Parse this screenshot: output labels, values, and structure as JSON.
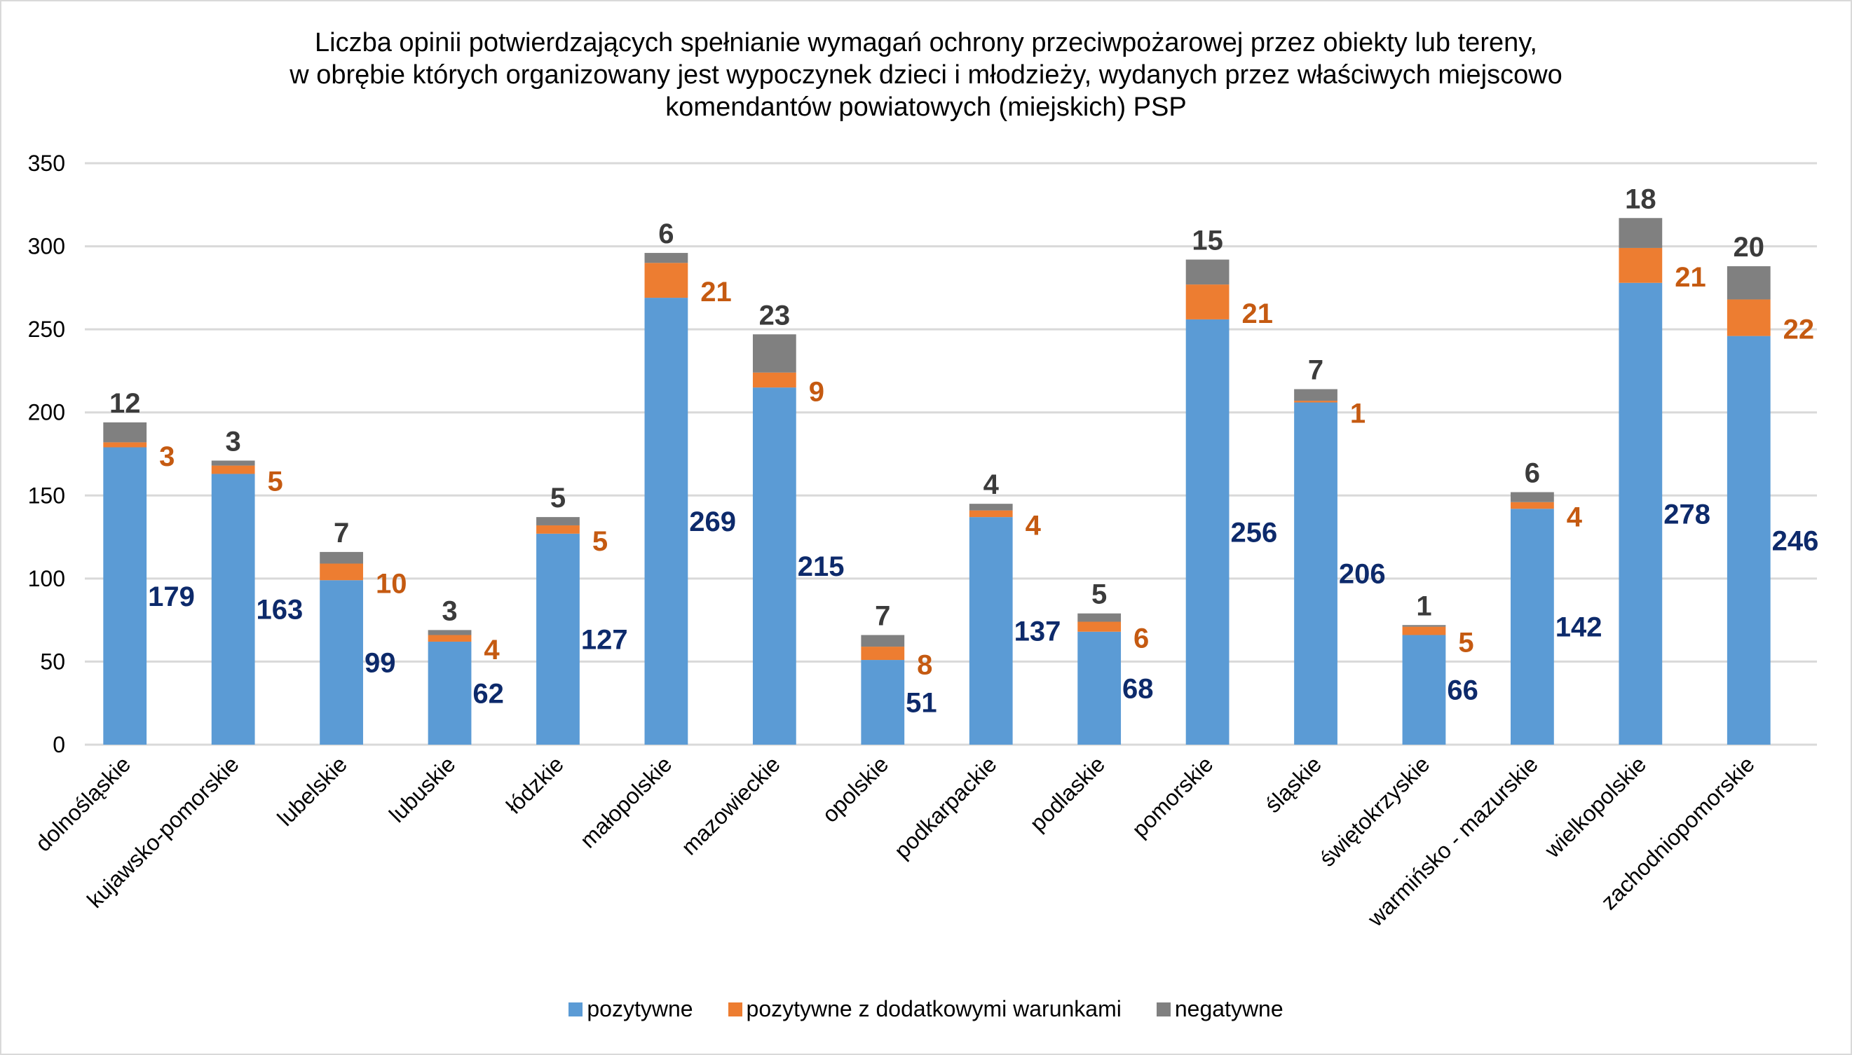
{
  "chart_data": {
    "type": "bar",
    "stacked": true,
    "title": [
      "Liczba opinii potwierdzających spełnianie wymagań ochrony przeciwpożarowej przez obiekty lub tereny,",
      "w obrębie których organizowany jest wypoczynek dzieci i młodzieży, wydanych przez właściwych miejscowo",
      "komendantów powiatowych (miejskich) PSP"
    ],
    "xlabel": "",
    "ylabel": "",
    "ylim": [
      0,
      350
    ],
    "yticks": [
      0,
      50,
      100,
      150,
      200,
      250,
      300,
      350
    ],
    "grid": true,
    "legend_position": "bottom",
    "categories": [
      "dolnośląskie",
      "kujawsko-pomorskie",
      "lubelskie",
      "lubuskie",
      "łódzkie",
      "małopolskie",
      "mazowieckie",
      "opolskie",
      "podkarpackie",
      "podlaskie",
      "pomorskie",
      "śląskie",
      "świętokrzyskie",
      "warmińsko - mazurskie",
      "wielkopolskie",
      "zachodniopomorskie"
    ],
    "series": [
      {
        "name": "pozytywne",
        "color": "#5b9bd5",
        "label_color": "#0d2a6b",
        "values": [
          179,
          163,
          99,
          62,
          127,
          269,
          215,
          51,
          137,
          68,
          256,
          206,
          66,
          142,
          278,
          246
        ]
      },
      {
        "name": "pozytywne z dodatkowymi warunkami",
        "color": "#ed7d31",
        "label_color": "#c55a11",
        "values": [
          3,
          5,
          10,
          4,
          5,
          21,
          9,
          8,
          4,
          6,
          21,
          1,
          5,
          4,
          21,
          22
        ]
      },
      {
        "name": "negatywne",
        "color": "#808080",
        "label_color": "#3b3b3b",
        "values": [
          12,
          3,
          7,
          3,
          5,
          6,
          23,
          7,
          4,
          5,
          15,
          7,
          1,
          6,
          18,
          20
        ]
      }
    ]
  }
}
